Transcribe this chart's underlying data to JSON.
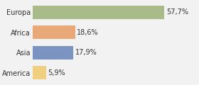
{
  "categories": [
    "America",
    "Asia",
    "Africa",
    "Europa"
  ],
  "values": [
    5.9,
    17.9,
    18.6,
    57.7
  ],
  "labels": [
    "5,9%",
    "17,9%",
    "18,6%",
    "57,7%"
  ],
  "bar_colors": [
    "#f0d080",
    "#7b93c0",
    "#e8a878",
    "#a8bb88"
  ],
  "background_color": "#f2f2f2",
  "xlim": [
    0,
    72
  ],
  "bar_height": 0.65,
  "label_fontsize": 7,
  "tick_fontsize": 7,
  "grid_color": "#ffffff",
  "grid_linewidth": 1.2
}
